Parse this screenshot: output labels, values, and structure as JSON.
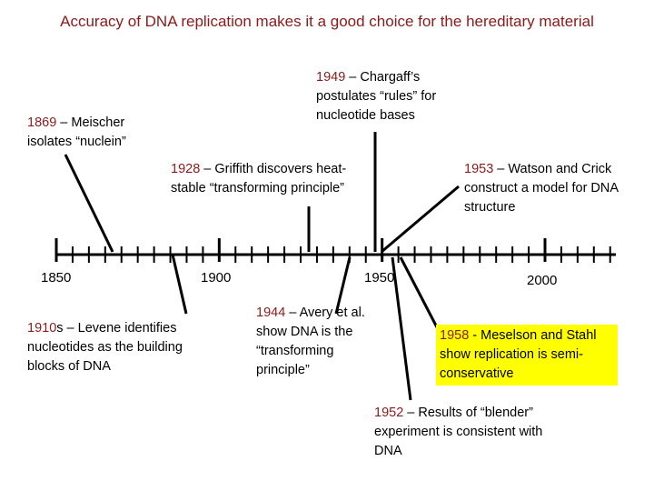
{
  "title": "Accuracy of DNA replication makes it a good choice for the hereditary material",
  "axis": {
    "start_year": 1850,
    "end_year": 2000,
    "labels": [
      "1850",
      "1900",
      "1950",
      "2000"
    ]
  },
  "events": [
    {
      "year": "1869",
      "text": " – Meischer isolates “nuclein”",
      "position": "above"
    },
    {
      "year": "1910",
      "text": "s – Levene identifies nucleotides as the building blocks of DNA",
      "position": "below"
    },
    {
      "year": "1928",
      "text": " – Griffith discovers heat-stable “transforming principle”",
      "position": "above"
    },
    {
      "year": "1944",
      "text": " – Avery et al. show DNA is the “transforming principle”",
      "position": "below"
    },
    {
      "year": "1949",
      "text": " – Chargaff’s postulates “rules” for nucleotide bases",
      "position": "above"
    },
    {
      "year": "1952",
      "text": " – Results of “blender” experiment is consistent with DNA",
      "position": "below"
    },
    {
      "year": "1953",
      "text": " – Watson and Crick construct a model for DNA structure",
      "position": "above"
    },
    {
      "year": "1958",
      "text": " - Meselson and Stahl show replication is semi-conservative",
      "position": "below",
      "highlight": "#ffff00"
    }
  ],
  "colors": {
    "title": "#8b1a1a",
    "year": "#8b1a1a",
    "highlight": "#ffff00"
  }
}
